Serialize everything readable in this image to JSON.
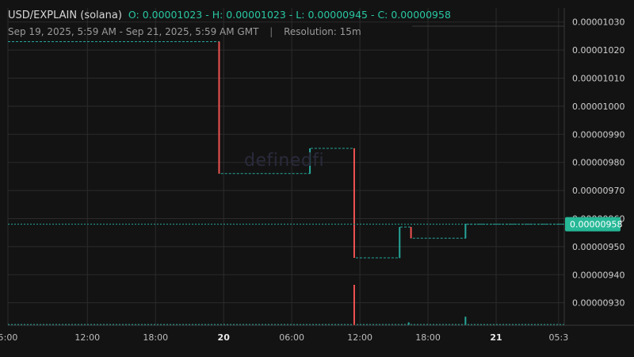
{
  "header": {
    "symbol": "USD/EXPLAIN (solana)",
    "ohlc": "O: 0.00001023 - H: 0.00001023 - L: 0.00000945 - C: 0.00000958",
    "range": "Sep 19, 2025, 5:59 AM - Sep 21, 2025, 5:59 AM GMT",
    "separator": "|",
    "resolution": "Resolution: 15m"
  },
  "watermark": "definedfi",
  "colors": {
    "background": "#131313",
    "up": "#26a69a",
    "down": "#ef5350",
    "grid": "#2b2b2b",
    "last_price": "#26a69a"
  },
  "chart_data": {
    "type": "line",
    "style": "step price with volume bars",
    "x_tick_labels": [
      "5:00",
      "12:00",
      "18:00",
      "20",
      "06:00",
      "12:00",
      "18:00",
      "21",
      "05:3"
    ],
    "y_tick_labels": [
      "0.00001030",
      "0.00001020",
      "0.00001010",
      "0.00001000",
      "0.00000990",
      "0.00000980",
      "0.00000970",
      "0.00000960",
      "0.00000950",
      "0.00000940",
      "0.00000930"
    ],
    "y_tick_values": [
      1.03e-05,
      1.02e-05,
      1.01e-05,
      1e-05,
      9.9e-06,
      9.8e-06,
      9.7e-06,
      9.6e-06,
      9.5e-06,
      9.4e-06,
      9.3e-06
    ],
    "ylim": [
      9.22e-06,
      1.035e-05
    ],
    "x_unit": "hours since Sep 19, 2025 05:00 GMT",
    "x_tick_positions": [
      0,
      7,
      13,
      19,
      25,
      31,
      37,
      43,
      48.5
    ],
    "xlim": [
      0,
      49
    ],
    "last_price": "0.00000958",
    "last_price_value": 9.58e-06,
    "series": [
      {
        "name": "price",
        "points": [
          {
            "x": 0,
            "y": 1.023e-05
          },
          {
            "x": 18.6,
            "y": 1.023e-05
          },
          {
            "x": 18.6,
            "y": 9.76e-06
          },
          {
            "x": 26.6,
            "y": 9.76e-06
          },
          {
            "x": 26.6,
            "y": 9.85e-06
          },
          {
            "x": 30.5,
            "y": 9.85e-06
          },
          {
            "x": 30.5,
            "y": 9.46e-06
          },
          {
            "x": 34.5,
            "y": 9.46e-06
          },
          {
            "x": 34.5,
            "y": 9.57e-06
          },
          {
            "x": 35.5,
            "y": 9.57e-06
          },
          {
            "x": 35.5,
            "y": 9.53e-06
          },
          {
            "x": 40.3,
            "y": 9.53e-06
          },
          {
            "x": 40.3,
            "y": 9.58e-06
          },
          {
            "x": 49,
            "y": 9.58e-06
          }
        ]
      }
    ],
    "candles": [
      {
        "x": 18.6,
        "open": 1.023e-05,
        "close": 9.76e-06,
        "dir": "down"
      },
      {
        "x": 26.6,
        "open": 9.76e-06,
        "close": 9.85e-06,
        "dir": "up"
      },
      {
        "x": 30.5,
        "open": 9.85e-06,
        "close": 9.46e-06,
        "dir": "down"
      },
      {
        "x": 34.5,
        "open": 9.46e-06,
        "close": 9.57e-06,
        "dir": "up"
      },
      {
        "x": 35.5,
        "open": 9.57e-06,
        "close": 9.53e-06,
        "dir": "down"
      },
      {
        "x": 40.3,
        "open": 9.53e-06,
        "close": 9.58e-06,
        "dir": "up"
      }
    ],
    "volume": [
      {
        "x": 30.5,
        "v": 0.85,
        "dir": "down"
      },
      {
        "x": 35.3,
        "v": 0.06,
        "dir": "up"
      },
      {
        "x": 40.3,
        "v": 0.18,
        "dir": "up"
      }
    ]
  }
}
